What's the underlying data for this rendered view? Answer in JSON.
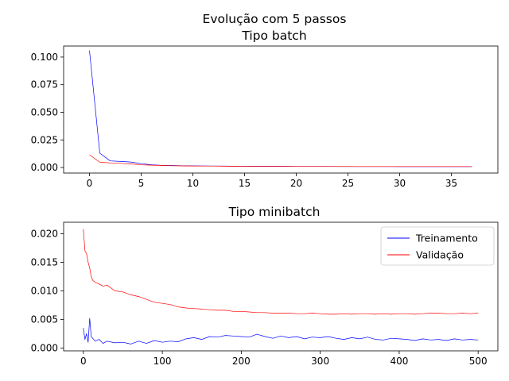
{
  "figure": {
    "suptitle": "Evolução com 5 passos"
  },
  "chart_data": [
    {
      "type": "line",
      "title": "Tipo batch",
      "xlabel": "",
      "ylabel": "",
      "xlim": [
        -2.5,
        39.5
      ],
      "ylim": [
        -0.005,
        0.11
      ],
      "xticks": [
        0,
        5,
        10,
        15,
        20,
        25,
        30,
        35
      ],
      "yticks": [
        0.0,
        0.025,
        0.05,
        0.075,
        0.1
      ],
      "ytick_decimals": 3,
      "grid": false,
      "legend": null,
      "series": [
        {
          "name": "Treinamento",
          "color": "#0000ff",
          "x": [
            0,
            1,
            2,
            3,
            4,
            5,
            6,
            7,
            8,
            9,
            10,
            11,
            12,
            13,
            14,
            15,
            16,
            17,
            18,
            19,
            20,
            21,
            22,
            23,
            24,
            25,
            26,
            27,
            28,
            29,
            30,
            31,
            32,
            33,
            34,
            35,
            36,
            37
          ],
          "values": [
            0.106,
            0.013,
            0.006,
            0.0055,
            0.005,
            0.0035,
            0.0025,
            0.002,
            0.0018,
            0.0016,
            0.0015,
            0.0014,
            0.0013,
            0.0013,
            0.0012,
            0.0012,
            0.0011,
            0.0011,
            0.0011,
            0.001,
            0.001,
            0.001,
            0.001,
            0.001,
            0.0009,
            0.0009,
            0.0009,
            0.0009,
            0.0009,
            0.0009,
            0.0008,
            0.0008,
            0.0008,
            0.0008,
            0.0008,
            0.0008,
            0.0008,
            0.0008
          ]
        },
        {
          "name": "Validação",
          "color": "#ff0000",
          "x": [
            0,
            1,
            2,
            3,
            4,
            5,
            6,
            7,
            8,
            9,
            10,
            11,
            12,
            13,
            14,
            15,
            16,
            17,
            18,
            19,
            20,
            21,
            22,
            23,
            24,
            25,
            26,
            27,
            28,
            29,
            30,
            31,
            32,
            33,
            34,
            35,
            36,
            37
          ],
          "values": [
            0.0115,
            0.0048,
            0.0042,
            0.0038,
            0.0033,
            0.0024,
            0.0021,
            0.0018,
            0.0016,
            0.0015,
            0.0014,
            0.0013,
            0.0013,
            0.0012,
            0.0012,
            0.0012,
            0.0011,
            0.0011,
            0.0011,
            0.0011,
            0.001,
            0.001,
            0.001,
            0.001,
            0.001,
            0.001,
            0.0009,
            0.0009,
            0.0009,
            0.0009,
            0.0009,
            0.0009,
            0.0009,
            0.0009,
            0.0009,
            0.0009,
            0.0009,
            0.0009
          ]
        }
      ]
    },
    {
      "type": "line",
      "title": "Tipo minibatch",
      "xlabel": "",
      "ylabel": "",
      "xlim": [
        -25,
        525
      ],
      "ylim": [
        -0.0005,
        0.022
      ],
      "xticks": [
        0,
        100,
        200,
        300,
        400,
        500
      ],
      "yticks": [
        0.0,
        0.005,
        0.01,
        0.015,
        0.02
      ],
      "ytick_decimals": 3,
      "grid": false,
      "legend": {
        "placement": "top-right",
        "entries": [
          "Treinamento",
          "Validação"
        ]
      },
      "series": [
        {
          "name": "Treinamento",
          "color": "#0000ff",
          "x": [
            0,
            2,
            4,
            6,
            8,
            10,
            15,
            20,
            25,
            30,
            40,
            50,
            60,
            70,
            80,
            90,
            100,
            110,
            120,
            130,
            140,
            150,
            160,
            170,
            180,
            190,
            200,
            210,
            220,
            230,
            240,
            250,
            260,
            270,
            280,
            290,
            300,
            310,
            320,
            330,
            340,
            350,
            360,
            370,
            380,
            390,
            400,
            410,
            420,
            430,
            440,
            450,
            460,
            470,
            480,
            490,
            500
          ],
          "values": [
            0.0035,
            0.0015,
            0.0025,
            0.001,
            0.0052,
            0.002,
            0.0012,
            0.0015,
            0.0008,
            0.0012,
            0.0009,
            0.001,
            0.0007,
            0.0012,
            0.0008,
            0.0013,
            0.001,
            0.0012,
            0.0011,
            0.0016,
            0.0018,
            0.0015,
            0.002,
            0.0019,
            0.0022,
            0.0021,
            0.002,
            0.0019,
            0.0024,
            0.002,
            0.0017,
            0.0021,
            0.0018,
            0.002,
            0.0016,
            0.0019,
            0.0018,
            0.002,
            0.0017,
            0.0015,
            0.0018,
            0.0016,
            0.0019,
            0.0015,
            0.0014,
            0.0017,
            0.0016,
            0.0015,
            0.0013,
            0.0016,
            0.0014,
            0.0015,
            0.0013,
            0.0016,
            0.0014,
            0.0015,
            0.0014
          ]
        },
        {
          "name": "Validação",
          "color": "#ff0000",
          "x": [
            0,
            2,
            4,
            6,
            8,
            10,
            12,
            15,
            20,
            25,
            30,
            40,
            50,
            60,
            70,
            80,
            90,
            100,
            110,
            120,
            130,
            140,
            150,
            160,
            170,
            180,
            190,
            200,
            210,
            220,
            230,
            240,
            250,
            260,
            270,
            280,
            290,
            300,
            310,
            320,
            330,
            340,
            350,
            360,
            370,
            380,
            390,
            400,
            410,
            420,
            430,
            440,
            450,
            460,
            470,
            480,
            490,
            500
          ],
          "values": [
            0.0208,
            0.017,
            0.0165,
            0.015,
            0.014,
            0.0125,
            0.0118,
            0.0115,
            0.0112,
            0.0108,
            0.011,
            0.01,
            0.0098,
            0.0093,
            0.009,
            0.0085,
            0.008,
            0.0078,
            0.0076,
            0.0072,
            0.007,
            0.0069,
            0.0068,
            0.0067,
            0.0066,
            0.0066,
            0.0064,
            0.0064,
            0.0063,
            0.0062,
            0.0062,
            0.0061,
            0.0061,
            0.0061,
            0.006,
            0.006,
            0.0061,
            0.006,
            0.0059,
            0.0059,
            0.006,
            0.0059,
            0.006,
            0.006,
            0.0059,
            0.006,
            0.0059,
            0.006,
            0.006,
            0.0059,
            0.006,
            0.0061,
            0.0061,
            0.006,
            0.006,
            0.0061,
            0.006,
            0.0061
          ]
        }
      ]
    }
  ]
}
